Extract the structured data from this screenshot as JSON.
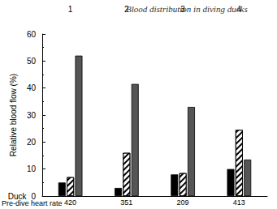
{
  "chart_data": {
    "type": "bar",
    "title": "Blood distribution in diving ducks",
    "xlabel": "Duck",
    "ylabel": "Relative blood flow (%)",
    "categories": [
      "1",
      "2",
      "3",
      "4"
    ],
    "series": [
      {
        "color": "#000000",
        "marker": "solid",
        "values": [
          5,
          3,
          8,
          10
        ]
      },
      {
        "color": "#ffffff",
        "marker": "hatch",
        "values": [
          7,
          16,
          8.5,
          24.5
        ]
      },
      {
        "color": "#555555",
        "marker": "solid",
        "values": [
          52,
          41.5,
          33,
          13.5
        ]
      }
    ],
    "pre_dive_heart_rate": {
      "label": "Pre-dive heart rate",
      "values": [
        420,
        351,
        209,
        413
      ]
    },
    "ylim": [
      0,
      60
    ],
    "yticks": [
      0,
      10,
      20,
      30,
      40,
      50,
      60
    ],
    "grid": false
  }
}
